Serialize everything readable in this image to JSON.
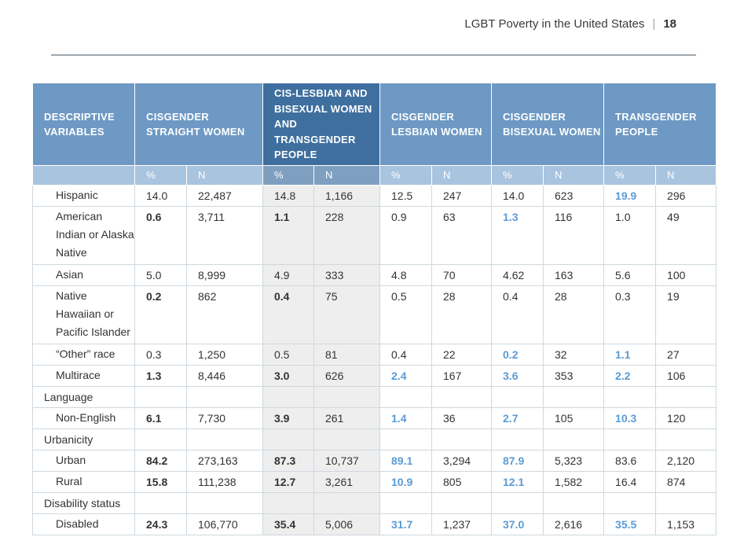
{
  "header": {
    "title": "LGBT Poverty in the United States",
    "separator": "|",
    "page_number": "18"
  },
  "table": {
    "columns": [
      {
        "label": "DESCRIPTIVE VARIABLES"
      },
      {
        "label": "CISGENDER STRAIGHT WOMEN",
        "sub": [
          "%",
          "N"
        ]
      },
      {
        "label": "CIS-LESBIAN AND BISEXUAL WOMEN AND TRANSGENDER PEOPLE",
        "sub": [
          "%",
          "N"
        ]
      },
      {
        "label": "CISGENDER LESBIAN WOMEN",
        "sub": [
          "%",
          "N"
        ]
      },
      {
        "label": "CISGENDER BISEXUAL WOMEN",
        "sub": [
          "%",
          "N"
        ]
      },
      {
        "label": "TRANSGENDER PEOPLE",
        "sub": [
          "%",
          "N"
        ]
      }
    ],
    "rows": [
      {
        "type": "data",
        "label": "Hispanic",
        "cells": [
          {
            "v": "14.0"
          },
          {
            "v": "22,487"
          },
          {
            "v": "14.8"
          },
          {
            "v": "1,166"
          },
          {
            "v": "12.5"
          },
          {
            "v": "247"
          },
          {
            "v": "14.0"
          },
          {
            "v": "623"
          },
          {
            "v": "19.9",
            "s": "blue"
          },
          {
            "v": "296"
          }
        ]
      },
      {
        "type": "data",
        "label": "American Indian or Alaska Native",
        "cells": [
          {
            "v": "0.6",
            "s": "b"
          },
          {
            "v": "3,711"
          },
          {
            "v": "1.1",
            "s": "b"
          },
          {
            "v": "228"
          },
          {
            "v": "0.9"
          },
          {
            "v": "63"
          },
          {
            "v": "1.3",
            "s": "blue"
          },
          {
            "v": "116"
          },
          {
            "v": "1.0"
          },
          {
            "v": "49"
          }
        ]
      },
      {
        "type": "data",
        "label": "Asian",
        "cells": [
          {
            "v": "5.0"
          },
          {
            "v": "8,999"
          },
          {
            "v": "4.9"
          },
          {
            "v": "333"
          },
          {
            "v": "4.8"
          },
          {
            "v": "70"
          },
          {
            "v": "4.62"
          },
          {
            "v": "163"
          },
          {
            "v": "5.6"
          },
          {
            "v": "100"
          }
        ]
      },
      {
        "type": "data",
        "label": "Native Hawaiian or Pacific Islander",
        "cells": [
          {
            "v": "0.2",
            "s": "b"
          },
          {
            "v": "862"
          },
          {
            "v": "0.4",
            "s": "b"
          },
          {
            "v": "75"
          },
          {
            "v": "0.5"
          },
          {
            "v": "28"
          },
          {
            "v": "0.4"
          },
          {
            "v": "28"
          },
          {
            "v": "0.3"
          },
          {
            "v": "19"
          }
        ]
      },
      {
        "type": "data",
        "label": "“Other” race",
        "cells": [
          {
            "v": "0.3"
          },
          {
            "v": "1,250"
          },
          {
            "v": "0.5"
          },
          {
            "v": "81"
          },
          {
            "v": "0.4"
          },
          {
            "v": "22"
          },
          {
            "v": "0.2",
            "s": "blue"
          },
          {
            "v": "32"
          },
          {
            "v": "1.1",
            "s": "blue"
          },
          {
            "v": "27"
          }
        ]
      },
      {
        "type": "data",
        "label": "Multirace",
        "cells": [
          {
            "v": "1.3",
            "s": "b"
          },
          {
            "v": "8,446"
          },
          {
            "v": "3.0",
            "s": "b"
          },
          {
            "v": "626"
          },
          {
            "v": "2.4",
            "s": "blue"
          },
          {
            "v": "167"
          },
          {
            "v": "3.6",
            "s": "blue"
          },
          {
            "v": "353"
          },
          {
            "v": "2.2",
            "s": "blue"
          },
          {
            "v": "106"
          }
        ]
      },
      {
        "type": "category",
        "label": "Language"
      },
      {
        "type": "data",
        "label": "Non-English",
        "cells": [
          {
            "v": "6.1",
            "s": "b"
          },
          {
            "v": "7,730"
          },
          {
            "v": "3.9",
            "s": "b"
          },
          {
            "v": "261"
          },
          {
            "v": "1.4",
            "s": "blue"
          },
          {
            "v": "36"
          },
          {
            "v": "2.7",
            "s": "blue"
          },
          {
            "v": "105"
          },
          {
            "v": "10.3",
            "s": "blue"
          },
          {
            "v": "120"
          }
        ]
      },
      {
        "type": "category",
        "label": "Urbanicity"
      },
      {
        "type": "data",
        "label": "Urban",
        "cells": [
          {
            "v": "84.2",
            "s": "b"
          },
          {
            "v": "273,163"
          },
          {
            "v": "87.3",
            "s": "b"
          },
          {
            "v": "10,737"
          },
          {
            "v": "89.1",
            "s": "blue"
          },
          {
            "v": "3,294"
          },
          {
            "v": "87.9",
            "s": "blue"
          },
          {
            "v": "5,323"
          },
          {
            "v": "83.6"
          },
          {
            "v": "2,120"
          }
        ]
      },
      {
        "type": "data",
        "label": "Rural",
        "cells": [
          {
            "v": "15.8",
            "s": "b"
          },
          {
            "v": "111,238"
          },
          {
            "v": "12.7",
            "s": "b"
          },
          {
            "v": "3,261"
          },
          {
            "v": "10.9",
            "s": "blue"
          },
          {
            "v": "805"
          },
          {
            "v": "12.1",
            "s": "blue"
          },
          {
            "v": "1,582"
          },
          {
            "v": "16.4"
          },
          {
            "v": "874"
          }
        ]
      },
      {
        "type": "category",
        "label": "Disability status"
      },
      {
        "type": "data",
        "label": "Disabled",
        "cells": [
          {
            "v": "24.3",
            "s": "b"
          },
          {
            "v": "106,770"
          },
          {
            "v": "35.4",
            "s": "b"
          },
          {
            "v": "5,006"
          },
          {
            "v": "31.7",
            "s": "blue"
          },
          {
            "v": "1,237"
          },
          {
            "v": "37.0",
            "s": "blue"
          },
          {
            "v": "2,616"
          },
          {
            "v": "35.5",
            "s": "blue"
          },
          {
            "v": "1,153"
          }
        ]
      }
    ]
  }
}
